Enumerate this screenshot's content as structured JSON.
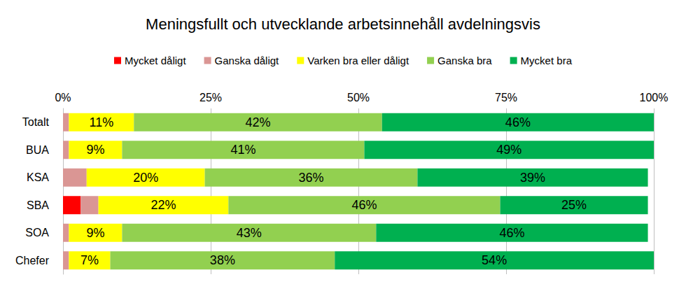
{
  "chart_data": {
    "type": "bar",
    "title": "Meningsfullt och utvecklande arbetsinnehåll avdelningsvis",
    "orientation": "horizontal",
    "stacked": true,
    "grid": true,
    "legend": "top",
    "categories": [
      "Totalt",
      "BUA",
      "KSA",
      "SBA",
      "SOA",
      "Chefer"
    ],
    "xlim": [
      0,
      100
    ],
    "xticks": [
      {
        "value": 0,
        "label": "0%"
      },
      {
        "value": 25,
        "label": "25%"
      },
      {
        "value": 50,
        "label": "50%"
      },
      {
        "value": 75,
        "label": "75%"
      },
      {
        "value": 100,
        "label": "100%"
      }
    ],
    "series": [
      {
        "name": "Mycket dåligt",
        "color": "#ff0000",
        "data_labels": false,
        "values": [
          0,
          0,
          0,
          3,
          0,
          0
        ]
      },
      {
        "name": "Ganska dåligt",
        "color": "#da9694",
        "data_labels": false,
        "values": [
          1,
          1,
          4,
          3,
          1,
          1
        ]
      },
      {
        "name": "Varken bra eller dåligt",
        "color": "#ffff00",
        "data_labels": true,
        "values": [
          11,
          9,
          20,
          22,
          9,
          7
        ],
        "value_labels": [
          "11%",
          "9%",
          "20%",
          "22%",
          "9%",
          "7%"
        ]
      },
      {
        "name": "Ganska bra",
        "color": "#92d050",
        "data_labels": true,
        "values": [
          42,
          41,
          36,
          46,
          43,
          38
        ],
        "value_labels": [
          "42%",
          "41%",
          "36%",
          "46%",
          "43%",
          "38%"
        ]
      },
      {
        "name": "Mycket bra",
        "color": "#00b050",
        "data_labels": true,
        "values": [
          46,
          49,
          39,
          25,
          46,
          54
        ],
        "value_labels": [
          "46%",
          "49%",
          "39%",
          "25%",
          "46%",
          "54%"
        ]
      }
    ]
  }
}
